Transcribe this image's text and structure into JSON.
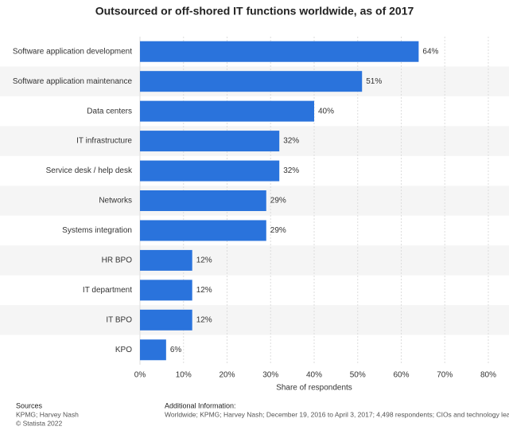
{
  "chart_data": {
    "type": "bar",
    "orientation": "horizontal",
    "title": "Outsourced or off-shored IT functions worldwide, as of 2017",
    "categories": [
      "Software application development",
      "Software application maintenance",
      "Data centers",
      "IT infrastructure",
      "Service desk / help desk",
      "Networks",
      "Systems integration",
      "HR BPO",
      "IT department",
      "IT BPO",
      "KPO"
    ],
    "values": [
      64,
      51,
      40,
      32,
      32,
      29,
      29,
      12,
      12,
      12,
      6
    ],
    "value_labels": [
      "64%",
      "51%",
      "40%",
      "32%",
      "32%",
      "29%",
      "29%",
      "12%",
      "12%",
      "12%",
      "6%"
    ],
    "color": "#2a73dc",
    "xlabel": "Share of respondents",
    "xlim": [
      0,
      80
    ],
    "xticks": [
      {
        "value": 0,
        "label": "0%"
      },
      {
        "value": 10,
        "label": "10%"
      },
      {
        "value": 20,
        "label": "20%"
      },
      {
        "value": 30,
        "label": "30%"
      },
      {
        "value": 40,
        "label": "40%"
      },
      {
        "value": 50,
        "label": "50%"
      },
      {
        "value": 60,
        "label": "60%"
      },
      {
        "value": 70,
        "label": "70%"
      },
      {
        "value": 80,
        "label": "80%"
      }
    ],
    "grid": true
  },
  "footer": {
    "sources_title": "Sources",
    "sources": "KPMG; Harvey Nash",
    "copyright": "© Statista 2022",
    "info_title": "Additional Information:",
    "info": "Worldwide; KPMG; Harvey Nash; December 19, 2016 to April 3, 2017; 4,498 respondents; CIOs and technology leaders a"
  }
}
